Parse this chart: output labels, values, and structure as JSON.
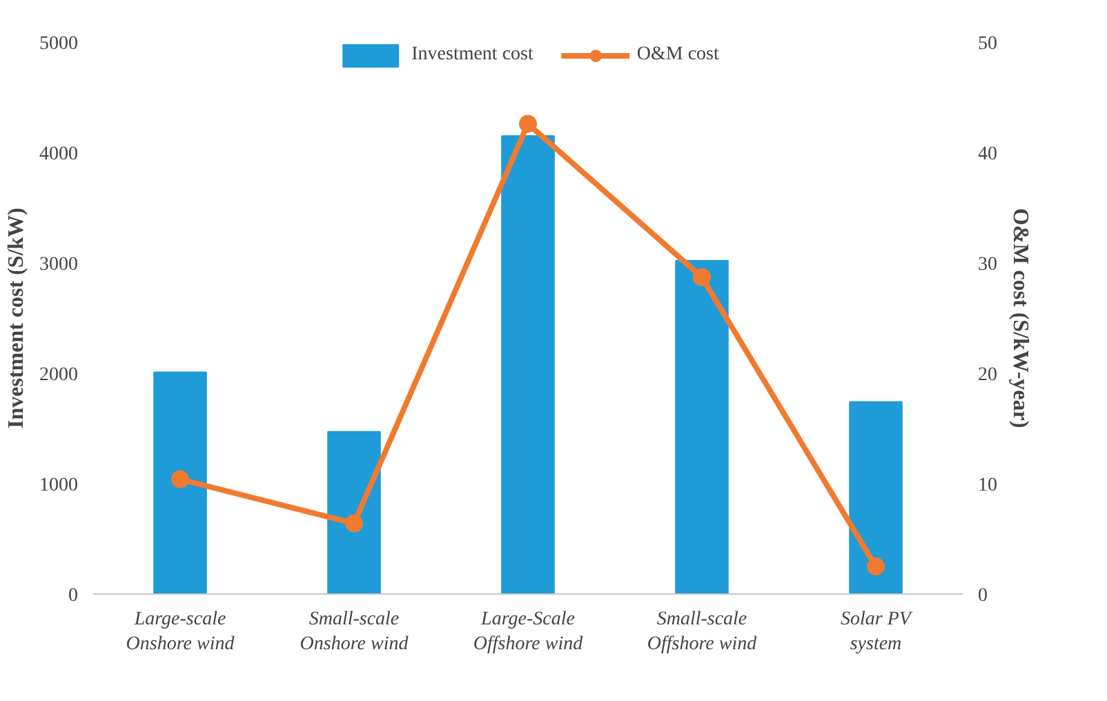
{
  "chart_data": {
    "type": "bar",
    "categories": [
      "Large-scale\nOnshore wind",
      "Small-scale\nOnshore wind",
      "Large-Scale\nOffshore wind",
      "Small-scale\nOffshore wind",
      "Solar PV\nsystem"
    ],
    "ylabel": "Investment cost (S/kW)",
    "y2label": "O&M cost (S/kW-year)",
    "ylim": [
      0,
      5000
    ],
    "yticks": [
      0,
      1000,
      2000,
      3000,
      4000,
      5000
    ],
    "y2lim": [
      0,
      50
    ],
    "y2ticks": [
      0,
      10,
      20,
      30,
      40,
      50
    ],
    "grid": false,
    "legend": "top",
    "series": [
      {
        "name": "Investment cost",
        "color": "#1f9bd7",
        "values": [
          2010,
          1470,
          4150,
          3020,
          1740
        ]
      },
      {
        "name": "O&M cost",
        "type": "line",
        "axis": "y2",
        "color": "#f07b30",
        "marker": "circle",
        "values": [
          10.4,
          6.4,
          42.6,
          28.7,
          2.5
        ]
      }
    ]
  }
}
